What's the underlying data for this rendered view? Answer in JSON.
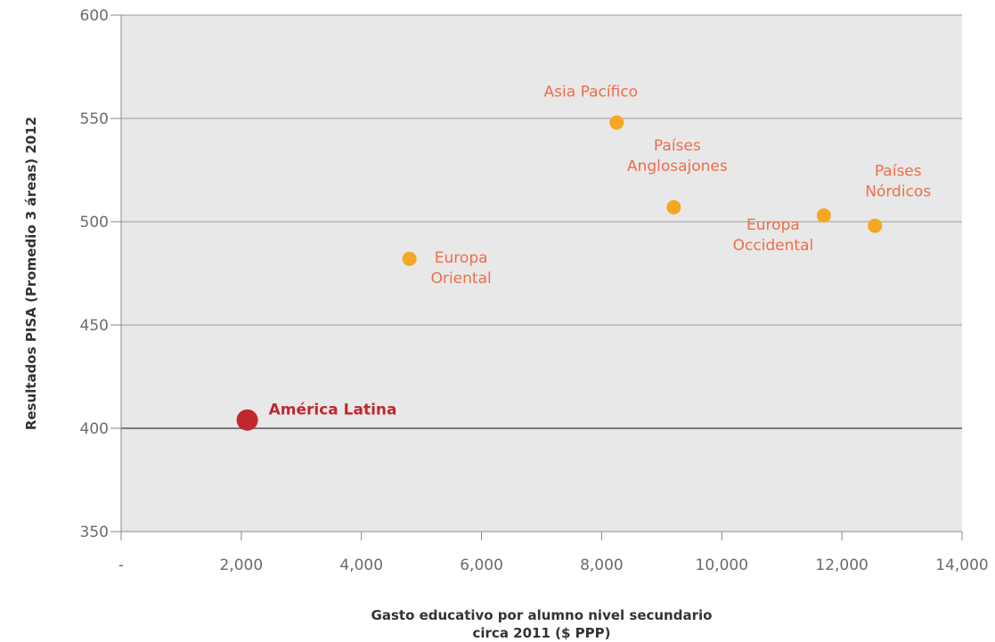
{
  "chart_data": {
    "type": "scatter",
    "title": "",
    "xlabel_lines": [
      "Gasto educativo por alumno nivel secundario",
      "circa 2011 ($ PPP)"
    ],
    "ylabel": "Resultados PISA (Promedio 3 áreas) 2012",
    "xlim": [
      0,
      14000
    ],
    "ylim": [
      350,
      600
    ],
    "x_ticks": [
      0,
      2000,
      4000,
      6000,
      8000,
      10000,
      12000,
      14000
    ],
    "x_tick_labels": [
      "-",
      "2,000",
      "4,000",
      "6,000",
      "8,000",
      "10,000",
      "12,000",
      "14,000"
    ],
    "y_ticks": [
      350,
      400,
      450,
      500,
      550,
      600
    ],
    "y_tick_labels": [
      "350",
      "400",
      "450",
      "500",
      "550",
      "600"
    ],
    "grid": "horizontal",
    "colors": {
      "region": "#f5a623",
      "region_label": "#ef6e4a",
      "highlight": "#c0282e",
      "plot_bg": "#e8e8e8"
    },
    "points": [
      {
        "label_lines": [
          "América Latina"
        ],
        "x": 2100,
        "y": 404,
        "highlight": true
      },
      {
        "label_lines": [
          "Europa",
          "Oriental"
        ],
        "x": 4800,
        "y": 482,
        "highlight": false
      },
      {
        "label_lines": [
          "Asia Pacífico"
        ],
        "x": 8250,
        "y": 548,
        "highlight": false
      },
      {
        "label_lines": [
          "Países",
          "Anglosajones"
        ],
        "x": 9200,
        "y": 507,
        "highlight": false
      },
      {
        "label_lines": [
          "Europa",
          "Occidental"
        ],
        "x": 11700,
        "y": 503,
        "highlight": false
      },
      {
        "label_lines": [
          "Países",
          "Nórdicos"
        ],
        "x": 12550,
        "y": 498,
        "highlight": false
      }
    ]
  }
}
